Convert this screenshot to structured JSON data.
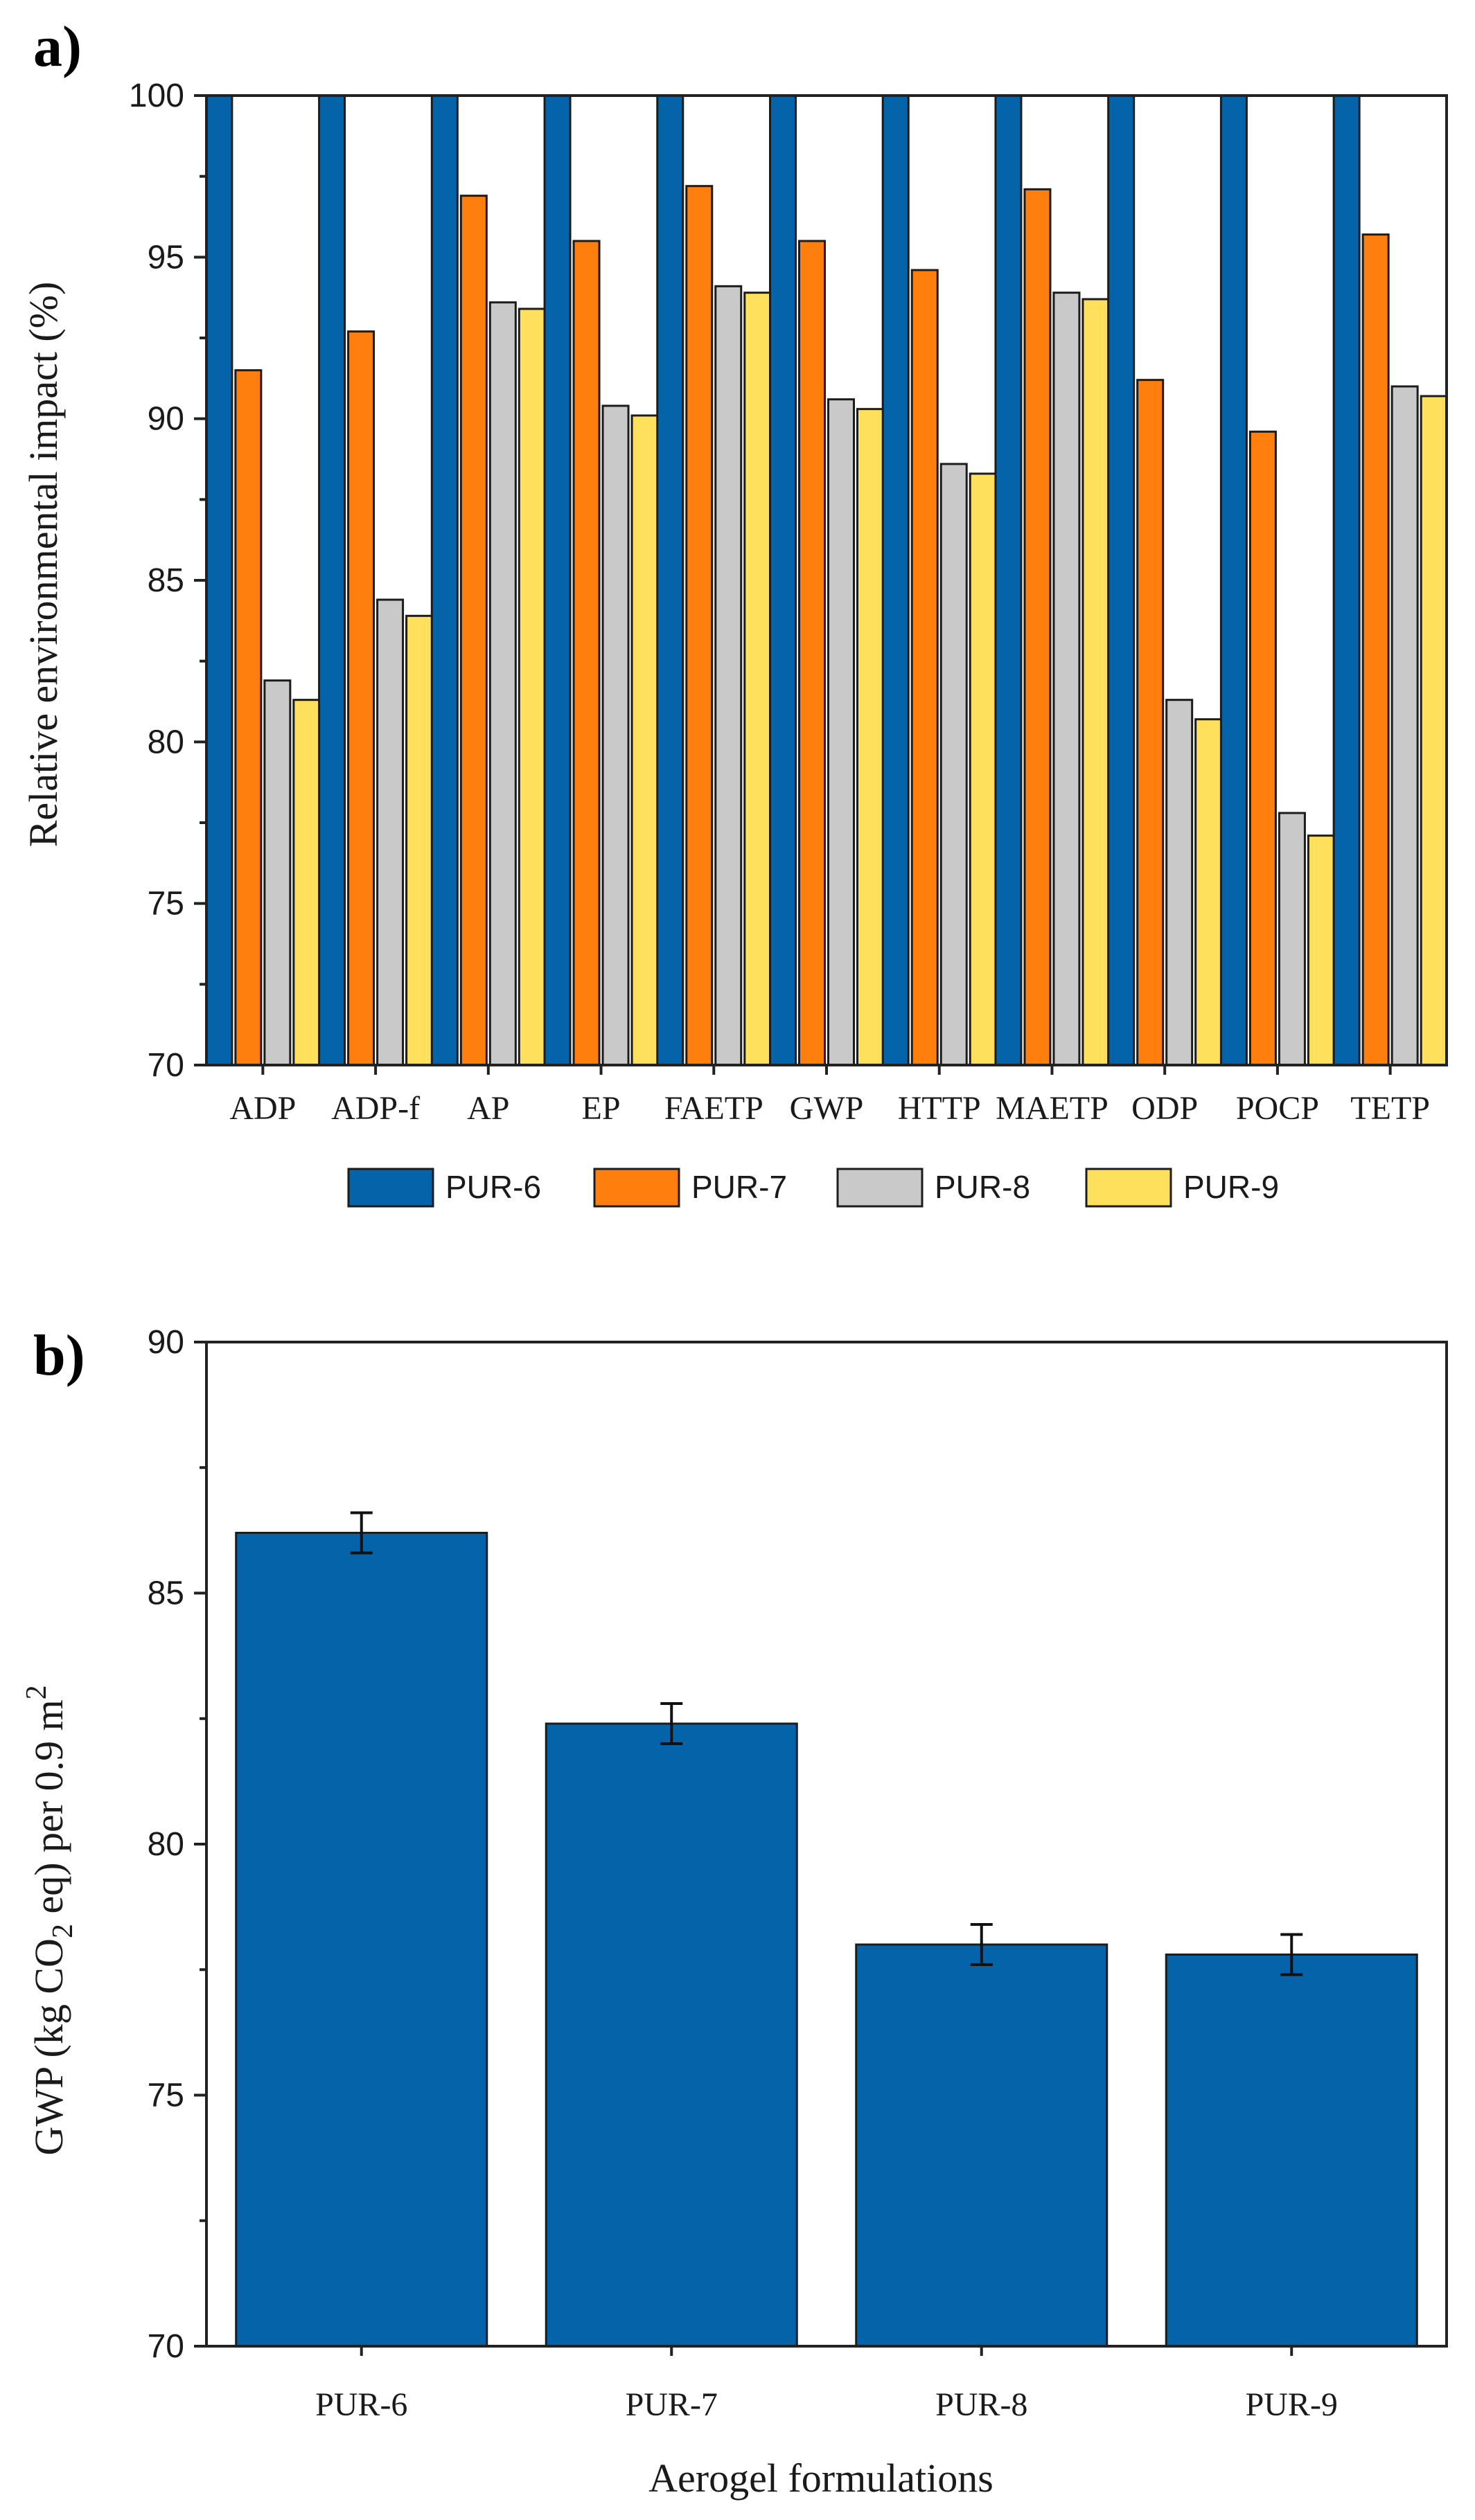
{
  "chart_data": [
    {
      "panel_label": "a)",
      "type": "bar",
      "title": "",
      "xlabel": "",
      "ylabel": "Relative environmental impact (%)",
      "ylim": [
        70,
        100
      ],
      "yticks": [
        "70",
        "75",
        "80",
        "85",
        "90",
        "95",
        "100"
      ],
      "categories": [
        "ADP",
        "ADP-f",
        "AP",
        "EP",
        "FAETP",
        "GWP",
        "HTTP",
        "MAETP",
        "ODP",
        "POCP",
        "TETP"
      ],
      "grid": false,
      "legend_position": "bottom",
      "series": [
        {
          "name": "PUR-6",
          "color": "#0563aa",
          "values": [
            100,
            100,
            100,
            100,
            100,
            100,
            100,
            100,
            100,
            100,
            100
          ]
        },
        {
          "name": "PUR-7",
          "color": "#ff7f0e",
          "values": [
            91.5,
            92.7,
            96.9,
            95.5,
            97.2,
            95.5,
            94.6,
            97.1,
            91.2,
            89.6,
            95.7
          ]
        },
        {
          "name": "PUR-8",
          "color": "#c9c9c9",
          "values": [
            81.9,
            84.4,
            93.6,
            90.4,
            94.1,
            90.6,
            88.6,
            93.9,
            81.3,
            77.8,
            91.0
          ]
        },
        {
          "name": "PUR-9",
          "color": "#ffe05c",
          "values": [
            81.3,
            83.9,
            93.4,
            90.1,
            93.9,
            90.3,
            88.3,
            93.7,
            80.7,
            77.1,
            90.7
          ]
        }
      ]
    },
    {
      "panel_label": "b)",
      "type": "bar",
      "title": "",
      "xlabel": "Aerogel formulations",
      "ylabel_prefix": "GWP (kg CO",
      "ylabel_sub": "2",
      "ylabel_middle": " eq) per 0.9 m",
      "ylabel_sup": "2",
      "ylim": [
        70,
        90
      ],
      "yticks": [
        "70",
        "75",
        "80",
        "85",
        "90"
      ],
      "categories": [
        "PUR-6",
        "PUR-7",
        "PUR-8",
        "PUR-9"
      ],
      "grid": false,
      "series": [
        {
          "name": "GWP",
          "color": "#0563aa",
          "values": [
            86.2,
            82.4,
            78.0,
            77.8
          ],
          "errors": [
            0.4,
            0.4,
            0.4,
            0.4
          ]
        }
      ]
    }
  ]
}
